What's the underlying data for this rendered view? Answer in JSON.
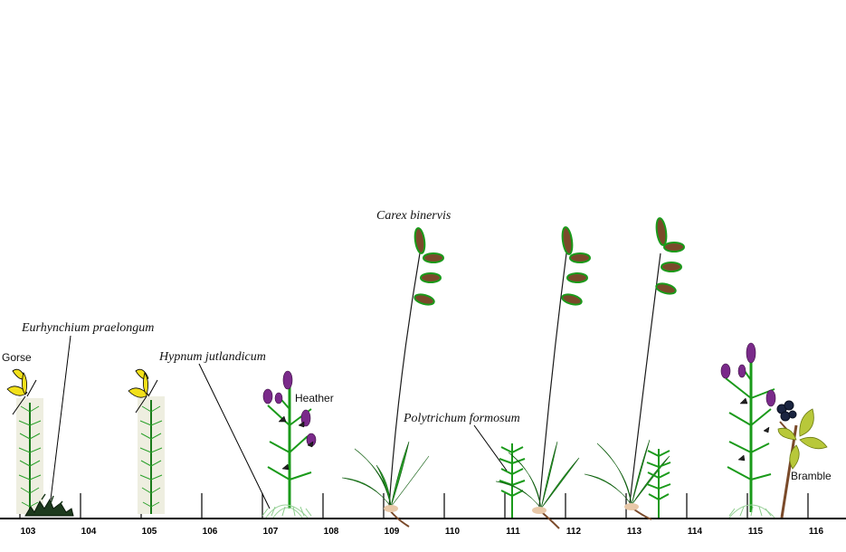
{
  "transect": {
    "ticks": [
      {
        "label": "103"
      },
      {
        "label": "104"
      },
      {
        "label": "105"
      },
      {
        "label": "106"
      },
      {
        "label": "107"
      },
      {
        "label": "108"
      },
      {
        "label": "109"
      },
      {
        "label": "110"
      },
      {
        "label": "111"
      },
      {
        "label": "112"
      },
      {
        "label": "113"
      },
      {
        "label": "114"
      },
      {
        "label": "115"
      },
      {
        "label": "116"
      }
    ]
  },
  "labels": {
    "gorse": "Gorse",
    "eurhynchium": "Eurhynchium praelongum",
    "hypnum": "Hypnum jutlandicum",
    "heather": "Heather",
    "carex": "Carex binervis",
    "polytrichum": "Polytrichum formosum",
    "bramble": "Bramble"
  },
  "colors": {
    "ground": "#000000",
    "stem_green": "#1a9a1a",
    "seed_brown": "#7a4a2a",
    "heather_purple": "#7a2a8a",
    "gorse_yellow": "#f2e01a",
    "bramble_leaf": "#b8c83a",
    "bramble_fruit": "#1a2440"
  }
}
